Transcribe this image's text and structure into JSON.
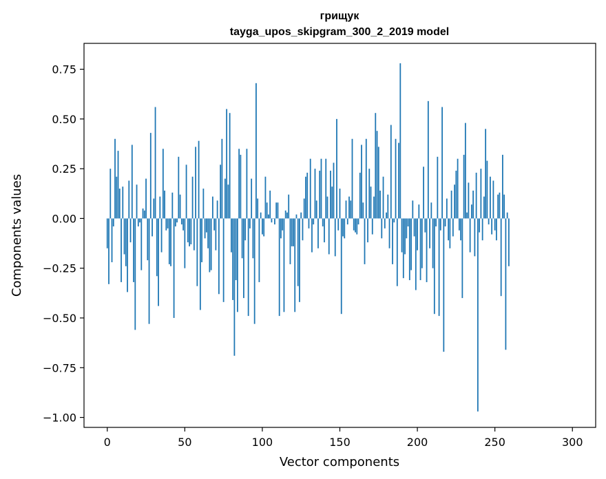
{
  "chart_data": {
    "type": "bar",
    "title": "грищук",
    "subtitle": "tayga_upos_skipgram_300_2_2019 model",
    "xlabel": "Vector components",
    "ylabel": "Components values",
    "xlim": [
      -15,
      315
    ],
    "ylim": [
      -1.05,
      0.88
    ],
    "xticks": [
      0,
      50,
      100,
      150,
      200,
      250,
      300
    ],
    "xtick_labels": [
      "0",
      "50",
      "100",
      "150",
      "200",
      "250",
      "300"
    ],
    "yticks": [
      0.75,
      0.5,
      0.25,
      0.0,
      -0.25,
      -0.5,
      -0.75,
      -1.0
    ],
    "ytick_labels": [
      "0.75",
      "0.50",
      "0.25",
      "0.00",
      "−0.25",
      "−0.50",
      "−0.75",
      "−1.00"
    ],
    "grid": false,
    "bar_color": "#1f77b4",
    "values": [
      -0.15,
      -0.33,
      0.25,
      -0.22,
      -0.04,
      0.4,
      0.21,
      0.34,
      0.15,
      -0.32,
      0.16,
      -0.18,
      -0.24,
      -0.37,
      0.19,
      -0.12,
      0.37,
      -0.32,
      -0.56,
      0.17,
      -0.04,
      -0.02,
      -0.26,
      0.05,
      0.04,
      0.2,
      -0.21,
      -0.53,
      0.43,
      -0.09,
      0.1,
      0.56,
      -0.29,
      -0.44,
      0.11,
      -0.17,
      0.35,
      0.14,
      -0.06,
      -0.05,
      -0.23,
      -0.24,
      0.13,
      -0.5,
      -0.04,
      -0.02,
      0.31,
      0.12,
      -0.03,
      -0.06,
      -0.25,
      0.27,
      -0.12,
      -0.14,
      -0.13,
      0.21,
      -0.16,
      0.36,
      -0.34,
      0.39,
      -0.46,
      -0.22,
      0.15,
      -0.1,
      -0.07,
      -0.15,
      -0.27,
      -0.26,
      0.11,
      -0.06,
      -0.16,
      0.09,
      -0.38,
      0.27,
      0.4,
      -0.42,
      0.2,
      0.55,
      0.17,
      0.53,
      -0.17,
      -0.41,
      -0.69,
      -0.31,
      -0.47,
      0.35,
      0.32,
      -0.2,
      -0.4,
      -0.11,
      0.35,
      -0.49,
      -0.05,
      0.2,
      -0.2,
      -0.53,
      0.68,
      0.1,
      -0.32,
      0.03,
      -0.08,
      -0.09,
      0.21,
      0.08,
      0.02,
      0.14,
      -0.02,
      0.0,
      -0.03,
      0.08,
      0.08,
      -0.49,
      -0.1,
      -0.06,
      -0.47,
      0.04,
      0.03,
      0.12,
      -0.23,
      -0.14,
      -0.14,
      -0.47,
      0.02,
      -0.34,
      -0.42,
      0.03,
      -0.11,
      0.1,
      0.21,
      0.23,
      -0.05,
      0.3,
      -0.17,
      -0.03,
      0.25,
      0.09,
      -0.15,
      0.24,
      0.3,
      -0.04,
      -0.12,
      0.3,
      0.11,
      -0.18,
      0.24,
      0.16,
      0.28,
      -0.19,
      0.5,
      -0.06,
      0.15,
      -0.48,
      -0.09,
      -0.1,
      0.09,
      -0.03,
      0.11,
      0.09,
      0.4,
      -0.06,
      -0.07,
      -0.08,
      -0.03,
      0.23,
      0.37,
      0.08,
      -0.23,
      0.4,
      -0.12,
      0.25,
      0.16,
      -0.08,
      0.11,
      0.53,
      0.44,
      0.36,
      0.14,
      -0.1,
      0.21,
      -0.05,
      0.03,
      0.12,
      -0.15,
      0.47,
      -0.23,
      -0.02,
      0.4,
      -0.34,
      0.38,
      0.78,
      -0.17,
      -0.3,
      -0.18,
      -0.1,
      -0.04,
      -0.31,
      -0.26,
      0.09,
      -0.09,
      -0.36,
      -0.16,
      0.07,
      -0.31,
      -0.25,
      0.26,
      -0.07,
      -0.32,
      0.59,
      -0.15,
      0.08,
      -0.25,
      -0.48,
      -0.04,
      0.31,
      -0.49,
      -0.06,
      0.56,
      -0.67,
      -0.04,
      0.1,
      -0.11,
      -0.15,
      0.14,
      -0.09,
      0.17,
      0.24,
      0.3,
      -0.06,
      -0.11,
      -0.4,
      0.32,
      0.48,
      0.03,
      0.18,
      -0.17,
      0.07,
      0.14,
      -0.19,
      0.23,
      -0.97,
      -0.07,
      0.25,
      -0.11,
      0.11,
      0.45,
      0.29,
      -0.03,
      0.21,
      -0.08,
      0.19,
      -0.06,
      -0.11,
      0.12,
      0.13,
      -0.39,
      0.32,
      0.12,
      -0.66,
      0.03,
      -0.24
    ]
  }
}
